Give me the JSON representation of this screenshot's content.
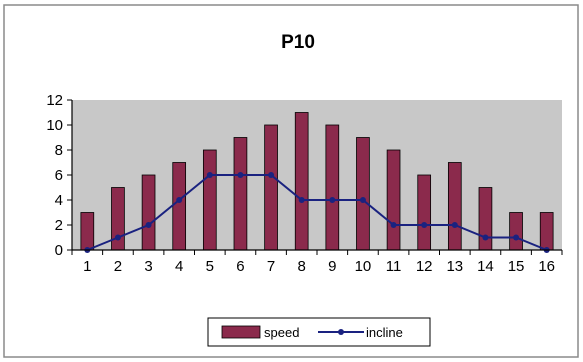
{
  "chart_data": {
    "type": "bar",
    "title": "P10",
    "xlabel": "",
    "ylabel": "",
    "categories": [
      "1",
      "2",
      "3",
      "4",
      "5",
      "6",
      "7",
      "8",
      "9",
      "10",
      "11",
      "12",
      "13",
      "14",
      "15",
      "16"
    ],
    "ylim": [
      0,
      12
    ],
    "yticks": [
      "0",
      "2",
      "4",
      "6",
      "8",
      "10",
      "12"
    ],
    "grid": false,
    "legend_position": "bottom",
    "series": [
      {
        "name": "speed",
        "type": "bar",
        "color": "#8b2a4c",
        "values": [
          3,
          5,
          6,
          7,
          8,
          9,
          10,
          11,
          10,
          9,
          8,
          6,
          7,
          5,
          3,
          3
        ]
      },
      {
        "name": "incline",
        "type": "line",
        "color": "#1a2280",
        "values": [
          0,
          1,
          2,
          4,
          6,
          6,
          6,
          4,
          4,
          4,
          2,
          2,
          2,
          1,
          1,
          0
        ]
      }
    ]
  }
}
